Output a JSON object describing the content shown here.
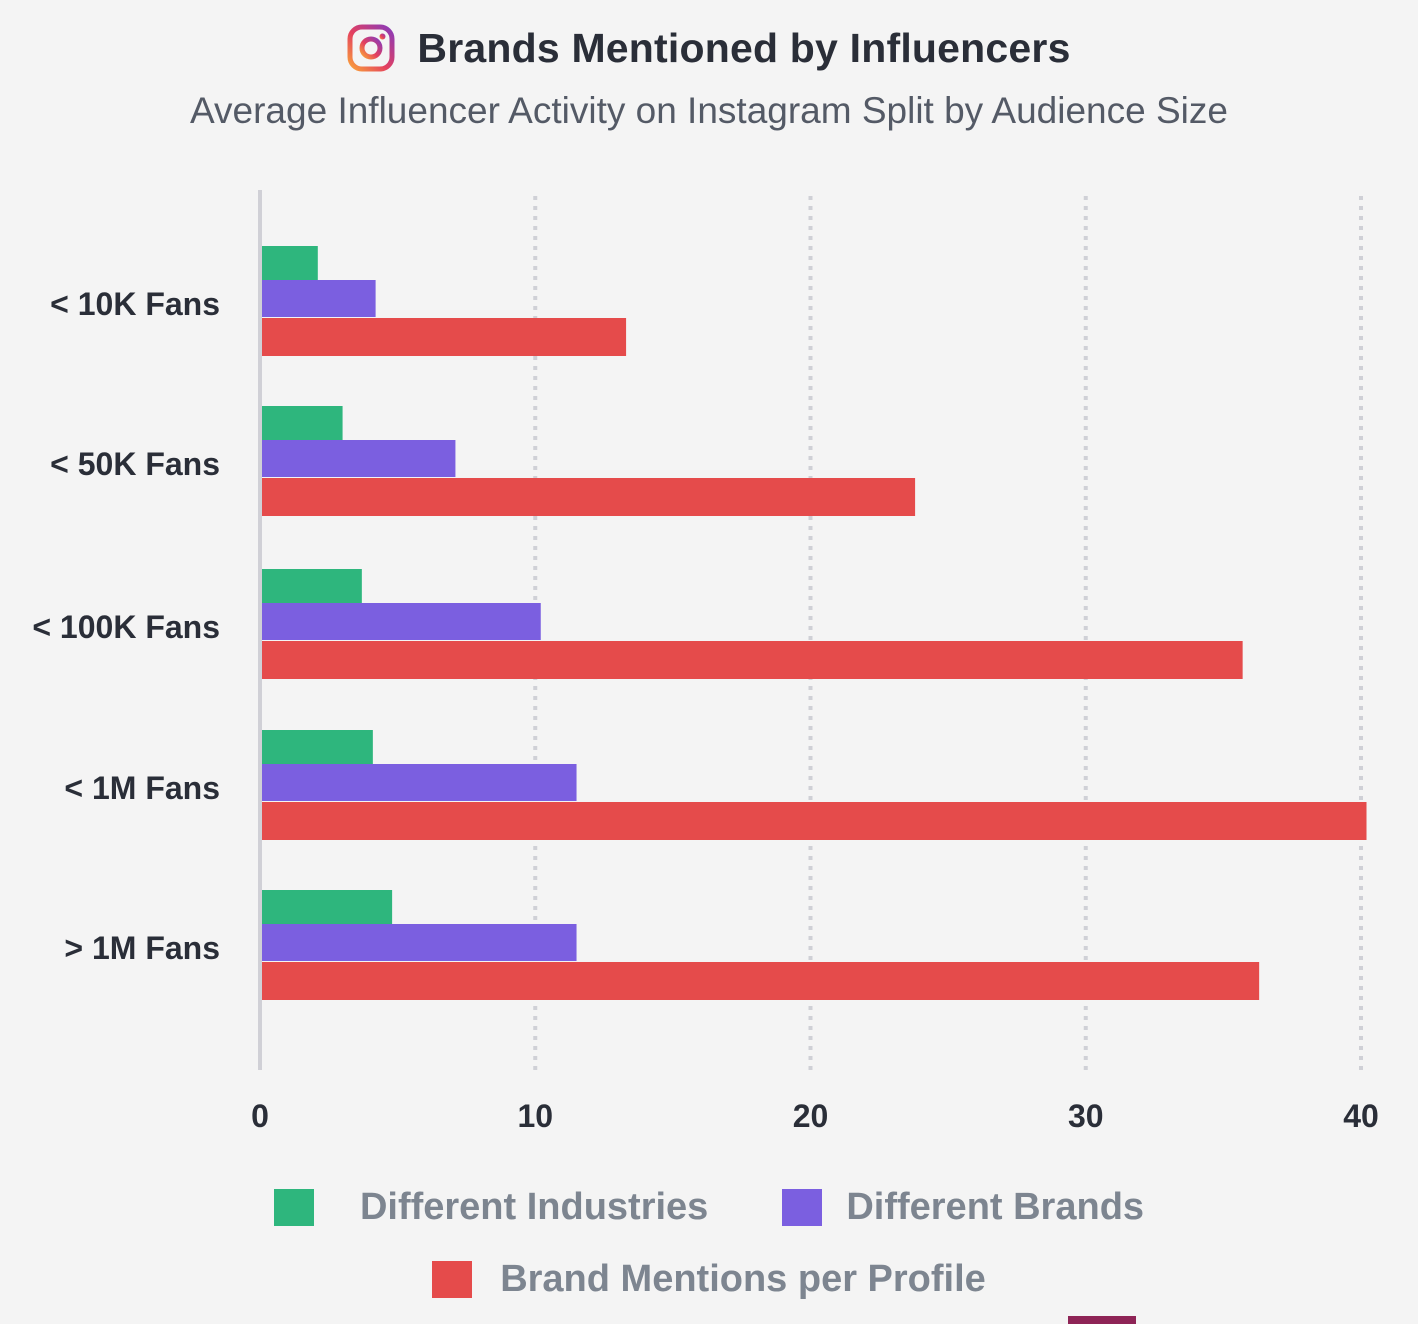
{
  "header": {
    "title": "Brands Mentioned by Influencers",
    "subtitle": "Average Influencer Activity on Instagram Split by Audience Size",
    "icon": "instagram-icon"
  },
  "colors": {
    "industries": "#2eb67d",
    "brands": "#7b5fe0",
    "mentions": "#e54b4b",
    "axis_line": "#d0d0d6",
    "grid": "#cfd0d6",
    "tick_text": "#2a2e38",
    "category_text": "#2a2e38",
    "bottom_mark": "#8e2456"
  },
  "chart_data": {
    "type": "bar",
    "orientation": "horizontal",
    "title": "Brands Mentioned by Influencers",
    "subtitle": "Average Influencer Activity on Instagram Split by Audience Size",
    "categories": [
      "< 10K Fans",
      "< 50K Fans",
      "< 100K Fans",
      "< 1M Fans",
      "> 1M Fans"
    ],
    "series": [
      {
        "name": "Different Industries",
        "values": [
          2.1,
          3.0,
          3.7,
          4.1,
          4.8
        ]
      },
      {
        "name": "Different Brands",
        "values": [
          4.2,
          7.1,
          10.2,
          11.5,
          11.5
        ]
      },
      {
        "name": "Brand Mentions per Profile",
        "values": [
          13.3,
          23.8,
          35.7,
          40.2,
          36.3
        ]
      }
    ],
    "xlim": [
      0,
      40
    ],
    "xticks": [
      "0",
      "10",
      "20",
      "30",
      "40"
    ],
    "grid": "vertical dotted",
    "legend_position": "bottom"
  },
  "legend": {
    "row1": [
      {
        "label": "Different Industries",
        "color": "#2eb67d"
      },
      {
        "label": "Different Brands",
        "color": "#7b5fe0"
      }
    ],
    "row2": [
      {
        "label": "Brand Mentions per Profile",
        "color": "#e54b4b"
      }
    ]
  }
}
